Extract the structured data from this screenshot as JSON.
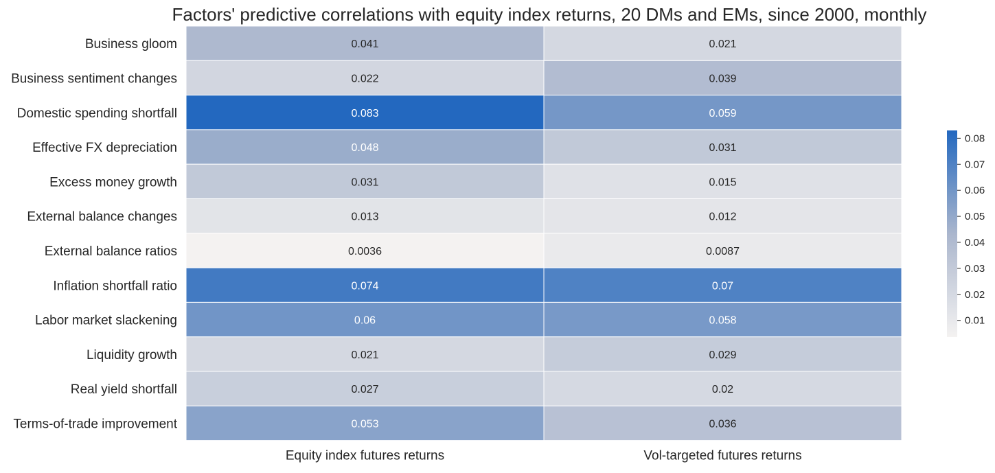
{
  "chart_data": {
    "type": "heatmap",
    "title": "Factors' predictive correlations with equity index returns, 20 DMs and EMs, since 2000, monthly",
    "xlabel": "",
    "ylabel": "",
    "columns": [
      "Equity index futures returns",
      "Vol-targeted futures returns"
    ],
    "rows": [
      "Business gloom",
      "Business sentiment changes",
      "Domestic spending shortfall",
      "Effective FX depreciation",
      "Excess money growth",
      "External balance changes",
      "External balance ratios",
      "Inflation shortfall ratio",
      "Labor market slackening",
      "Liquidity growth",
      "Real yield shortfall",
      "Terms-of-trade improvement"
    ],
    "values": [
      [
        0.041,
        0.021
      ],
      [
        0.022,
        0.039
      ],
      [
        0.083,
        0.059
      ],
      [
        0.048,
        0.031
      ],
      [
        0.031,
        0.015
      ],
      [
        0.013,
        0.012
      ],
      [
        0.0036,
        0.0087
      ],
      [
        0.074,
        0.07
      ],
      [
        0.06,
        0.058
      ],
      [
        0.021,
        0.029
      ],
      [
        0.027,
        0.02
      ],
      [
        0.053,
        0.036
      ]
    ],
    "cell_labels": [
      [
        "0.041",
        "0.021"
      ],
      [
        "0.022",
        "0.039"
      ],
      [
        "0.083",
        "0.059"
      ],
      [
        "0.048",
        "0.031"
      ],
      [
        "0.031",
        "0.015"
      ],
      [
        "0.013",
        "0.012"
      ],
      [
        "0.0036",
        "0.0087"
      ],
      [
        "0.074",
        "0.07"
      ],
      [
        "0.06",
        "0.058"
      ],
      [
        "0.021",
        "0.029"
      ],
      [
        "0.027",
        "0.02"
      ],
      [
        "0.053",
        "0.036"
      ]
    ],
    "colorbar": {
      "min": 0.0036,
      "max": 0.083,
      "ticks": [
        0.01,
        0.02,
        0.03,
        0.04,
        0.05,
        0.06,
        0.07,
        0.08
      ],
      "tick_labels": [
        "0.01",
        "0.02",
        "0.03",
        "0.04",
        "0.05",
        "0.06",
        "0.07",
        "0.08"
      ],
      "placement": "right"
    },
    "colors": {
      "low": "#f4f2f1",
      "high": "#2368bf",
      "grid_line": "#ffffff",
      "text_dark": "#262626",
      "text_light": "#ffffff",
      "axis_text": "#262626"
    }
  }
}
